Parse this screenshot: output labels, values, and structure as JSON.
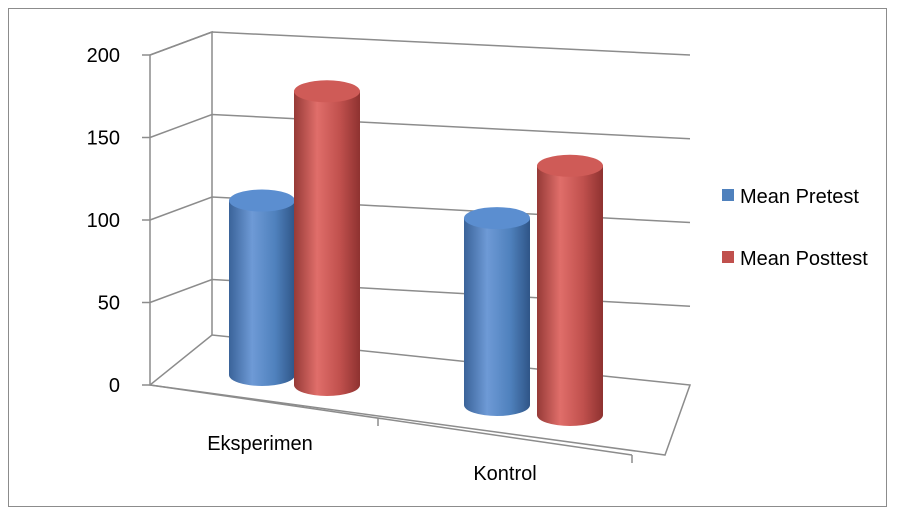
{
  "chart_data": {
    "type": "bar",
    "title": "",
    "xlabel": "",
    "ylabel": "",
    "categories": [
      "Eksperimen",
      "Kontrol"
    ],
    "series": [
      {
        "name": "Mean Pretest",
        "values": [
          98,
          105
        ],
        "color": "#4f81bd"
      },
      {
        "name": "Mean Posttest",
        "values": [
          165,
          140
        ],
        "color": "#c0504d"
      }
    ],
    "yticks": [
      "0",
      "50",
      "100",
      "150",
      "200"
    ],
    "ylim": [
      0,
      200
    ],
    "grid": true,
    "legend_position": "right",
    "bar_shape": "cylinder-3d"
  }
}
